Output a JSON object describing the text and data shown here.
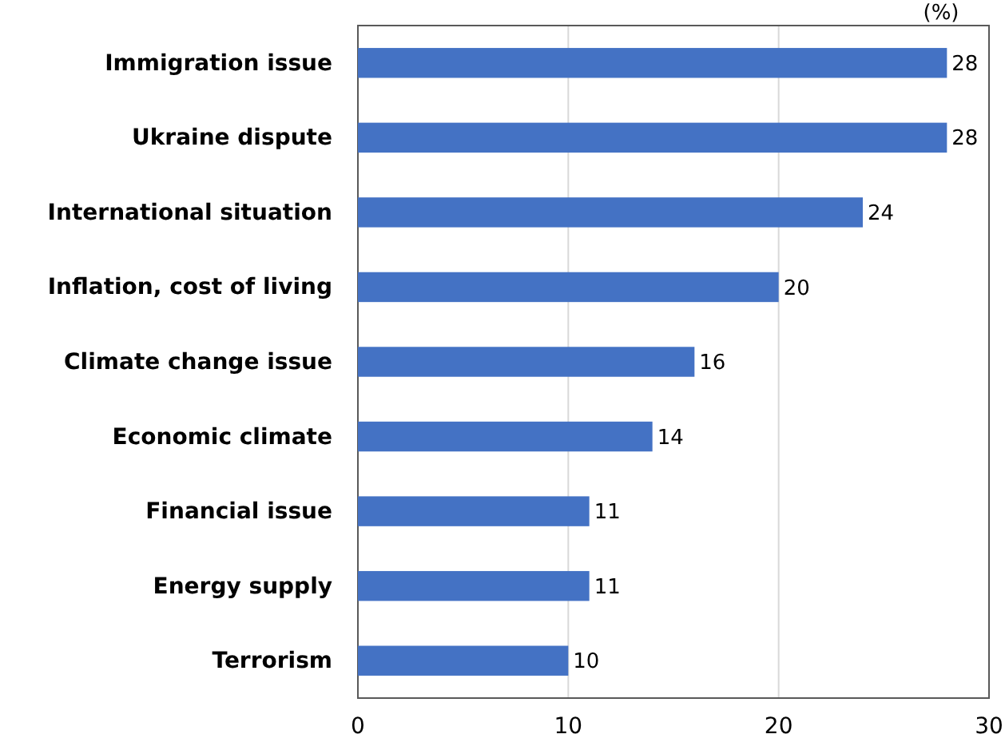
{
  "chart_data": {
    "type": "bar",
    "orientation": "horizontal",
    "xlabel": "(%)",
    "categories": [
      "Immigration issue",
      "Ukraine dispute",
      "International situation",
      "Inflation, cost of living",
      "Climate change issue",
      "Economic climate",
      "Financial issue",
      "Energy supply",
      "Terrorism"
    ],
    "values": [
      28,
      28,
      24,
      20,
      16,
      14,
      11,
      11,
      10
    ],
    "color": "#4472c4",
    "xlim": [
      0,
      30
    ],
    "xticks": [
      0,
      10,
      20,
      30
    ],
    "grid": "x",
    "data_labels": true
  }
}
